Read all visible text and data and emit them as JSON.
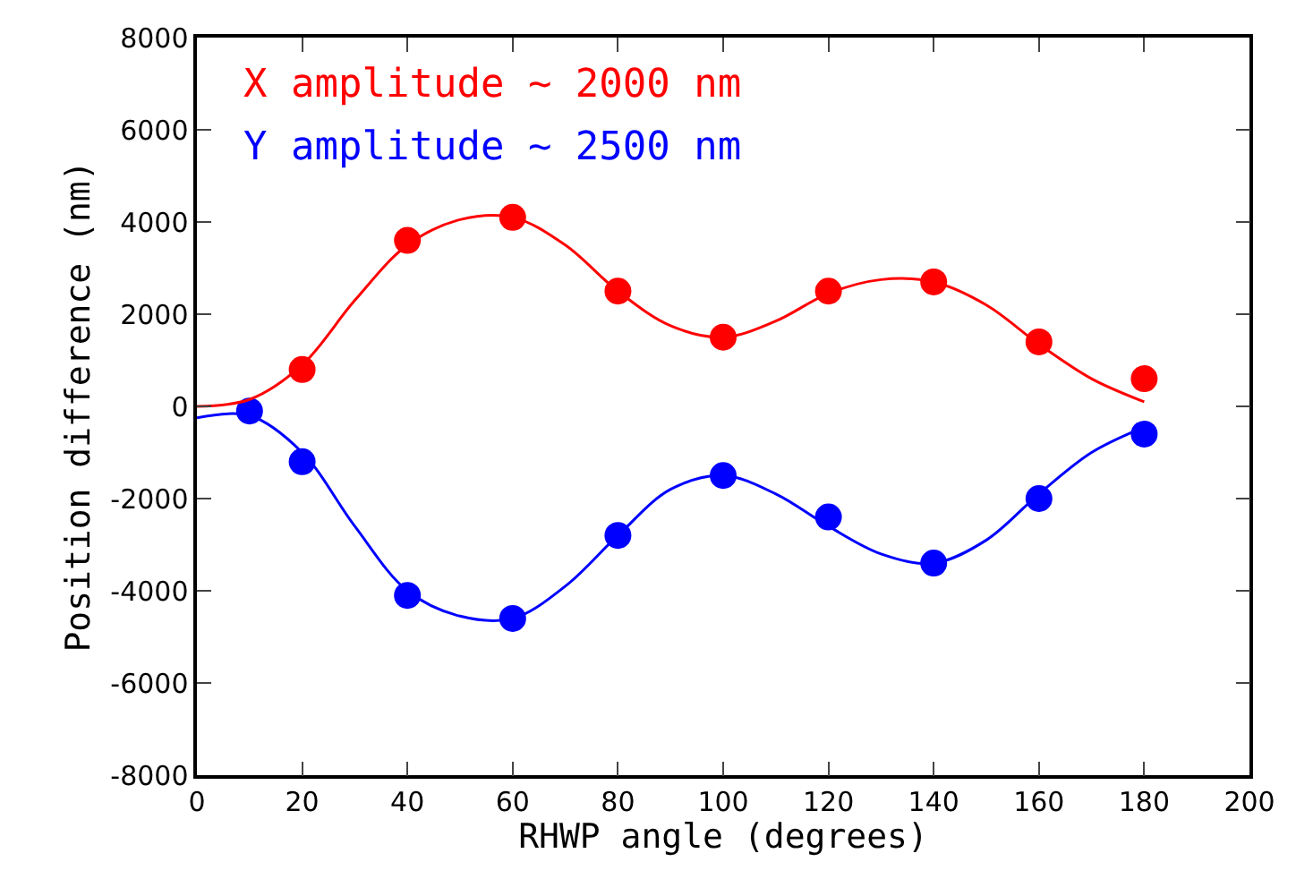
{
  "chart_data": {
    "type": "scatter",
    "xlabel": "RHWP angle (degrees)",
    "ylabel": "Position difference (nm)",
    "xlim": [
      0,
      200
    ],
    "xticks": [
      0,
      20,
      40,
      60,
      80,
      100,
      120,
      140,
      160,
      180,
      200
    ],
    "ylim": [
      -8000,
      8000
    ],
    "yticks": [
      -8000,
      -6000,
      -4000,
      -2000,
      0,
      2000,
      4000,
      6000,
      8000
    ],
    "legend": false,
    "series": [
      {
        "name": "X amplitude ~ 2000 nm",
        "marker": "circle",
        "color": "#ff0000",
        "x": [
          20,
          40,
          60,
          80,
          100,
          120,
          140,
          160,
          180
        ],
        "values": [
          800,
          3600,
          4100,
          2500,
          1500,
          2500,
          2700,
          1400,
          600
        ]
      },
      {
        "name": "Y amplitude ~ 2500 nm",
        "marker": "circle",
        "color": "#0000ff",
        "x": [
          10,
          20,
          40,
          60,
          80,
          100,
          120,
          140,
          160,
          180
        ],
        "values": [
          -100,
          -1200,
          -4100,
          -4600,
          -2800,
          -1500,
          -2400,
          -3400,
          -2000,
          -600
        ]
      },
      {
        "type": "line",
        "marker": "none",
        "color": "#ff0000",
        "x": [
          0,
          10,
          20,
          30,
          40,
          50,
          60,
          70,
          80,
          90,
          100,
          110,
          120,
          130,
          140,
          150,
          160,
          170,
          180
        ],
        "values": [
          0,
          150,
          900,
          2300,
          3500,
          4050,
          4100,
          3500,
          2500,
          1750,
          1500,
          1850,
          2450,
          2750,
          2700,
          2200,
          1350,
          600,
          100
        ]
      },
      {
        "type": "line",
        "marker": "none",
        "color": "#0000ff",
        "x": [
          0,
          10,
          20,
          30,
          40,
          50,
          60,
          70,
          80,
          90,
          100,
          110,
          120,
          130,
          140,
          150,
          160,
          170,
          180
        ],
        "values": [
          -250,
          -200,
          -1000,
          -2600,
          -4000,
          -4550,
          -4600,
          -3900,
          -2800,
          -1800,
          -1500,
          -1900,
          -2600,
          -3200,
          -3400,
          -2900,
          -1900,
          -1000,
          -450
        ]
      }
    ]
  }
}
